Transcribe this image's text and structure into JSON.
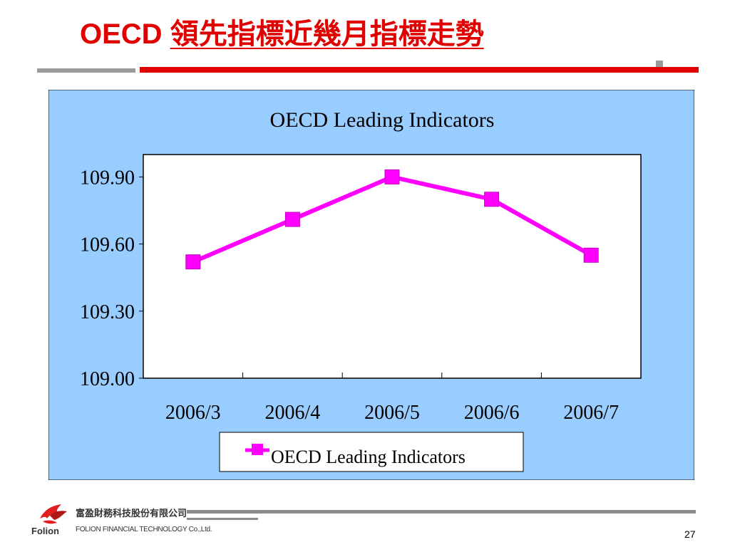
{
  "slide": {
    "title_lead": "OECD",
    "title_zh": "領先指標近幾月指標走勢",
    "page_number": "27"
  },
  "footer": {
    "company_zh": "富盈財務科技股份有限公司",
    "company_en": "FOLION FINANCIAL TECHNOLOGY Co.,Ltd.",
    "logo_name": "Folion"
  },
  "colors": {
    "title": "#e00000",
    "chart_area": "#99ccff",
    "plot_area": "#ffffff",
    "series": "#ff00ff"
  },
  "chart_data": {
    "type": "line",
    "title": "OECD Leading Indicators",
    "categories": [
      "2006/3",
      "2006/4",
      "2006/5",
      "2006/6",
      "2006/7"
    ],
    "series": [
      {
        "name": "OECD Leading Indicators",
        "values": [
          109.52,
          109.71,
          109.9,
          109.8,
          109.55
        ],
        "color": "#ff00ff",
        "marker": "square"
      }
    ],
    "yticks": [
      "109.00",
      "109.30",
      "109.60",
      "109.90"
    ],
    "ylim": [
      109.0,
      110.0
    ],
    "xlabel": "",
    "ylabel": "",
    "grid": false,
    "legend_position": "bottom"
  }
}
